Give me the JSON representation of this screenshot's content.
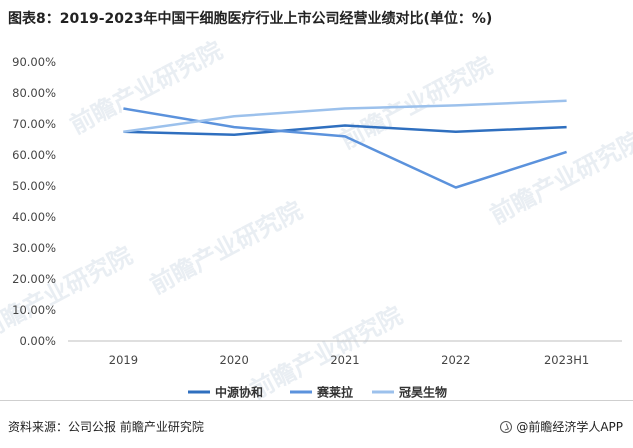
{
  "title": "图表8：2019-2023年中国干细胞医疗行业上市公司经营业绩对比(单位：%)",
  "source": "资料来源：公司公报 前瞻产业研究院",
  "brand": "@前瞻经济学人APP",
  "watermark": "前瞻产业研究院",
  "colors": {
    "zhongyuan": "#2f6fbf",
    "sailaila": "#5b92dc",
    "guanhao": "#9cc1ec"
  },
  "chart_data": {
    "type": "line",
    "title": "图表8：2019-2023年中国干细胞医疗行业上市公司经营业绩对比(单位：%)",
    "xlabel": "",
    "ylabel": "",
    "categories": [
      "2019",
      "2020",
      "2021",
      "2022",
      "2023H1"
    ],
    "ylim": [
      0,
      90
    ],
    "yticks": [
      "0.00%",
      "10.00%",
      "20.00%",
      "30.00%",
      "40.00%",
      "50.00%",
      "60.00%",
      "70.00%",
      "80.00%",
      "90.00%"
    ],
    "grid": false,
    "legend": "bottom",
    "series": [
      {
        "name": "中源协和",
        "values": [
          67.5,
          66.5,
          69.5,
          67.5,
          69.0
        ]
      },
      {
        "name": "赛莱拉",
        "values": [
          75.0,
          69.0,
          66.0,
          49.5,
          61.0
        ]
      },
      {
        "name": "冠昊生物",
        "values": [
          67.5,
          72.5,
          75.0,
          76.0,
          77.5
        ]
      }
    ]
  }
}
